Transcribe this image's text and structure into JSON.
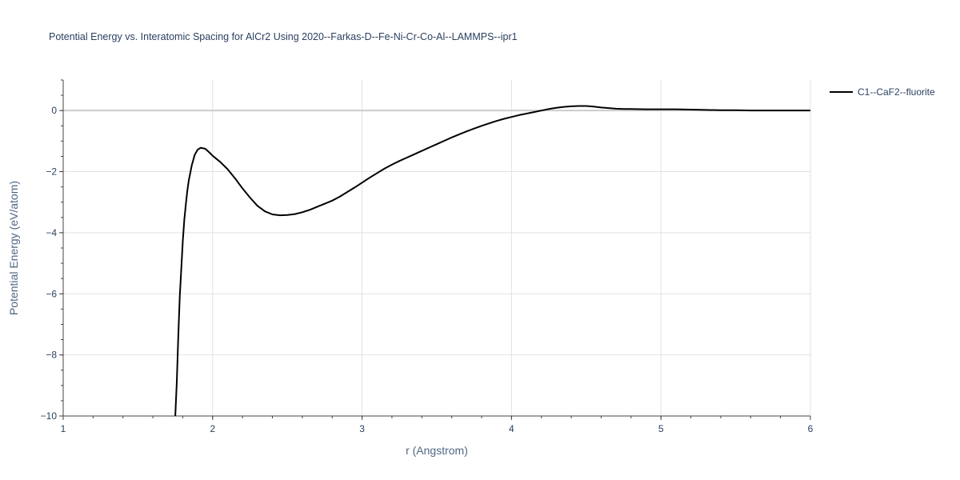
{
  "chart_data": {
    "type": "line",
    "title": "Potential Energy vs. Interatomic Spacing for AlCr2 Using 2020--Farkas-D--Fe-Ni-Cr-Co-Al--LAMMPS--ipr1",
    "xlabel": "r (Angstrom)",
    "ylabel": "Potential Energy (eV/atom)",
    "xlim": [
      1,
      6
    ],
    "ylim": [
      -10,
      1
    ],
    "x_ticks": [
      1,
      2,
      3,
      4,
      5,
      6
    ],
    "y_ticks": [
      0,
      -2,
      -4,
      -6,
      -8,
      -10
    ],
    "x_tick_labels": [
      "1",
      "2",
      "3",
      "4",
      "5",
      "6"
    ],
    "y_tick_labels": [
      "0",
      "−2",
      "−4",
      "−6",
      "−8",
      "−10"
    ],
    "grid": true,
    "legend_position": "top-right",
    "series": [
      {
        "name": "C1--CaF2--fluorite",
        "color": "#000000",
        "x": [
          1.75,
          1.76,
          1.77,
          1.78,
          1.79,
          1.8,
          1.81,
          1.82,
          1.83,
          1.84,
          1.86,
          1.88,
          1.9,
          1.92,
          1.95,
          1.98,
          2.0,
          2.05,
          2.1,
          2.15,
          2.2,
          2.25,
          2.3,
          2.35,
          2.4,
          2.45,
          2.5,
          2.55,
          2.6,
          2.65,
          2.7,
          2.75,
          2.8,
          2.85,
          2.9,
          2.95,
          3.0,
          3.05,
          3.1,
          3.15,
          3.2,
          3.25,
          3.3,
          3.35,
          3.4,
          3.45,
          3.5,
          3.55,
          3.6,
          3.65,
          3.7,
          3.75,
          3.8,
          3.85,
          3.9,
          3.95,
          4.0,
          4.05,
          4.1,
          4.15,
          4.2,
          4.25,
          4.3,
          4.35,
          4.4,
          4.45,
          4.5,
          4.55,
          4.6,
          4.65,
          4.7,
          4.75,
          4.8,
          4.9,
          5.0,
          5.1,
          5.2,
          5.3,
          5.4,
          5.5,
          5.6,
          5.7,
          5.8,
          5.9,
          6.0
        ],
        "y": [
          -10.0,
          -8.9,
          -7.4,
          -6.1,
          -5.2,
          -4.3,
          -3.6,
          -3.1,
          -2.65,
          -2.3,
          -1.8,
          -1.45,
          -1.28,
          -1.22,
          -1.25,
          -1.38,
          -1.48,
          -1.68,
          -1.92,
          -2.22,
          -2.55,
          -2.85,
          -3.12,
          -3.3,
          -3.4,
          -3.43,
          -3.42,
          -3.39,
          -3.33,
          -3.25,
          -3.15,
          -3.05,
          -2.95,
          -2.82,
          -2.67,
          -2.52,
          -2.36,
          -2.2,
          -2.05,
          -1.9,
          -1.77,
          -1.65,
          -1.54,
          -1.43,
          -1.32,
          -1.21,
          -1.1,
          -0.99,
          -0.88,
          -0.78,
          -0.68,
          -0.59,
          -0.5,
          -0.42,
          -0.34,
          -0.27,
          -0.21,
          -0.15,
          -0.1,
          -0.05,
          0.0,
          0.05,
          0.09,
          0.12,
          0.14,
          0.15,
          0.15,
          0.13,
          0.1,
          0.08,
          0.06,
          0.05,
          0.05,
          0.04,
          0.04,
          0.04,
          0.03,
          0.02,
          0.01,
          0.01,
          0.0,
          0.0,
          0.0,
          0.0,
          0.0
        ]
      }
    ]
  }
}
